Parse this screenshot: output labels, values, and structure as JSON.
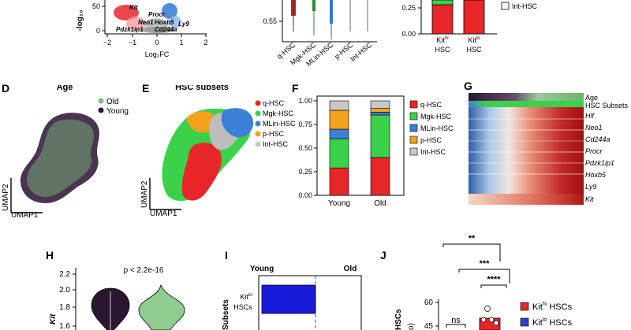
{
  "panel_labels": {
    "D": "D",
    "E": "E",
    "F": "F",
    "G": "G",
    "H": "H",
    "I": "I",
    "J": "J"
  },
  "colors": {
    "q": "#e8262a",
    "mgk": "#3bd14a",
    "mlin": "#3c7fd9",
    "p": "#f4a21d",
    "int": "#c8c8c8",
    "old": "#7fbf7f",
    "young": "#2b1630",
    "kithi": "#e8262a",
    "kitlo": "#2f3fd6",
    "bar_blue": "#1a1adb"
  },
  "top_volcano": {
    "ylabel": "-log₁₀",
    "yticks": [
      "50",
      "0"
    ],
    "xlabel": "Log₂FC",
    "xticks": [
      "−2",
      "−1",
      "0",
      "1",
      "2"
    ],
    "gene_labels": [
      "Kit",
      "Procr",
      "Neo1",
      "Hoxb5",
      "Ly9",
      "Pdzk1ip1",
      "Cd244a"
    ]
  },
  "top_violin": {
    "ytick": "0.55",
    "groups": [
      "q-HSC",
      "Mgk-HSC",
      "MLin-HSC",
      "p-HSC",
      "Int-HSC"
    ]
  },
  "top_stack": {
    "yticks": [
      "0.25",
      "0.00"
    ],
    "legend": "Int-HSC",
    "groups": [
      {
        "main": "Kit",
        "sup": "hi",
        "sub": "HSC"
      },
      {
        "main": "Kit",
        "sup": "lo",
        "sub": "HSC"
      }
    ]
  },
  "panelD": {
    "title": "Age",
    "legend": [
      "Old",
      "Young"
    ],
    "xlabel": "UMAP1",
    "ylabel": "UMAP2"
  },
  "panelE": {
    "title": "HSC subsets",
    "legend": [
      "q-HSC",
      "Mgk-HSC",
      "MLin-HSC",
      "p-HSC",
      "Int-HSC"
    ],
    "xlabel": "UMAP1",
    "ylabel": "UMAP2"
  },
  "chart_data": [
    {
      "type": "bar",
      "title": "",
      "categories": [
        "Young",
        "Old"
      ],
      "yticks": [
        "1.00",
        "0.75",
        "0.50",
        "0.25",
        "0.00"
      ],
      "ylim": [
        0,
        1
      ],
      "series": [
        {
          "name": "q-HSC",
          "values": [
            0.29,
            0.4
          ]
        },
        {
          "name": "Mgk-HSC",
          "values": [
            0.31,
            0.45
          ]
        },
        {
          "name": "MLin-HSC",
          "values": [
            0.1,
            0.03
          ]
        },
        {
          "name": "p-HSC",
          "values": [
            0.2,
            0.04
          ]
        },
        {
          "name": "Int-HSC",
          "values": [
            0.1,
            0.08
          ]
        }
      ]
    }
  ],
  "panelG": {
    "tracks": [
      "Age",
      "HSC Subsets"
    ],
    "genes": [
      "Hlf",
      "Neo1",
      "Cd244a",
      "Procr",
      "Pdzk1ip1",
      "Hoxb5",
      "Ly9",
      "Kit"
    ]
  },
  "panelH": {
    "pvalue": "p < 2.2e-16",
    "yticks": [
      "2.2",
      "2.0",
      "1.8",
      "1.6"
    ],
    "ylabel": "Kit"
  },
  "panelI": {
    "left_label": "Young",
    "right_label": "Old",
    "ylabel": "Subsets",
    "bar_label_main": "Kit",
    "bar_label_sup": "lo",
    "bar_label_sub": "HSCs"
  },
  "panelJ": {
    "sig": [
      "**",
      "***",
      "****",
      "ns"
    ],
    "yticks": [
      "60",
      "45"
    ],
    "ylabel": "HSCs",
    "ylabel_hint": "o)",
    "legend": [
      {
        "main": "Kit",
        "sup": "hi",
        "tail": " HSCs"
      },
      {
        "main": "Kit",
        "sup": "lo",
        "tail": " HSCs"
      }
    ]
  }
}
